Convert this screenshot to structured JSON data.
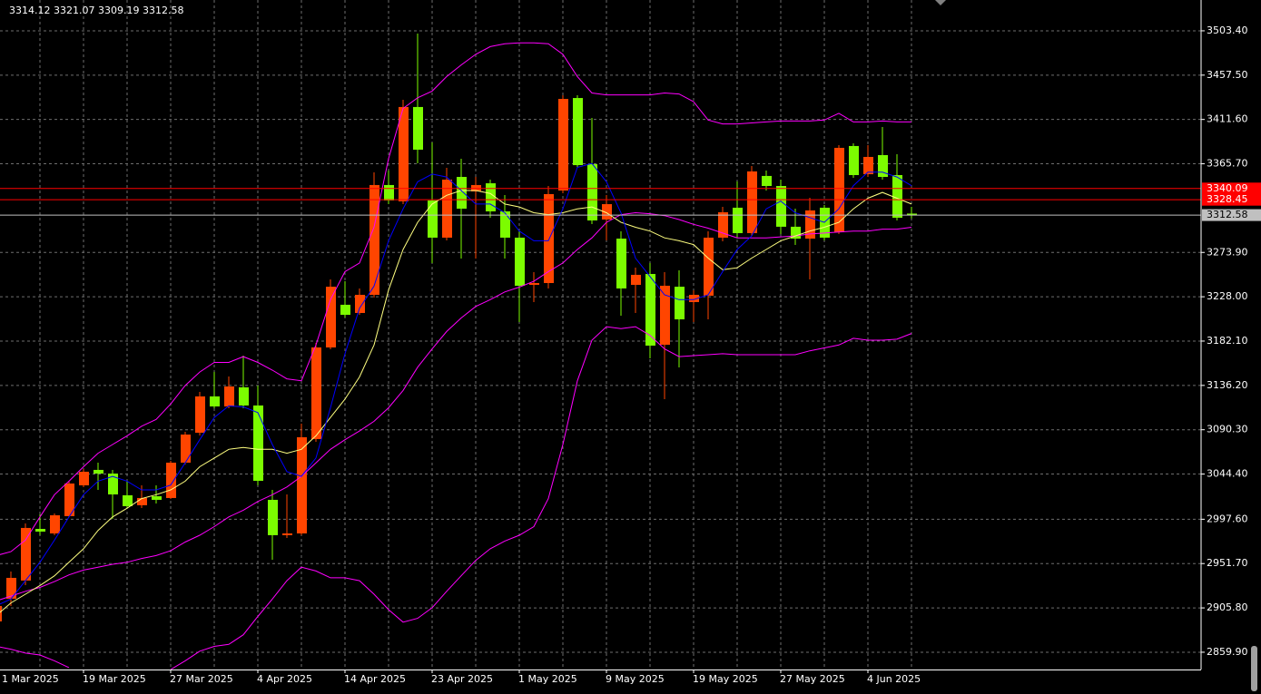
{
  "chart_data": {
    "type": "candlestick",
    "info": "3314.12 3321.07 3309.19 3312.58",
    "categories": [
      "1 Mar 2025",
      null,
      null,
      null,
      null,
      null,
      "19 Mar 2025",
      null,
      null,
      null,
      null,
      null,
      "27 Mar 2025",
      null,
      null,
      null,
      null,
      null,
      "4 Apr 2025",
      null,
      null,
      null,
      null,
      null,
      "14 Apr 2025",
      null,
      null,
      null,
      null,
      null,
      "23 Apr 2025",
      null,
      null,
      null,
      null,
      null,
      "1 May 2025",
      null,
      null,
      null,
      null,
      null,
      "9 May 2025",
      null,
      null,
      null,
      null,
      null,
      "19 May 2025",
      null,
      null,
      null,
      null,
      null,
      "27 May 2025",
      null,
      null,
      null,
      null,
      null,
      "4 Jun 2025",
      null,
      null,
      null
    ],
    "open": [
      2891.8,
      2915.3,
      2934.1,
      2987.6,
      2982.9,
      3000.8,
      3032.7,
      3048.7,
      3044.9,
      3022.4,
      3012.1,
      3021.4,
      3019.6,
      3056.2,
      3087.2,
      3124.8,
      3114.4,
      3134.2,
      3115.4,
      3017.7,
      2981.1,
      2982.9,
      3080.6,
      3175.5,
      3219.7,
      3211.2,
      3230.0,
      3343.7,
      3326.8,
      3424.5,
      3327.7,
      3289.2,
      3352.1,
      3337.1,
      3345.5,
      3316.4,
      3289.2,
      3240.3,
      3242.2,
      3338.0,
      3433.8,
      3365.3,
      3308.0,
      3288.2,
      3240.3,
      3251.6,
      3178.3,
      3238.4,
      3222.5,
      3229.1,
      3289.2,
      3320.2,
      3293.9,
      3353.1,
      3342.7,
      3300.5,
      3288.2,
      3320.2,
      3294.8,
      3384.1,
      3354.9,
      3374.7,
      3354.0,
      3314.12
    ],
    "high": [
      2920.0,
      2943.5,
      2993.3,
      3002.7,
      3003.6,
      3036.5,
      3049.6,
      3056.2,
      3048.7,
      3037.4,
      3032.7,
      3032.7,
      3058.1,
      3088.1,
      3129.5,
      3150.1,
      3145.4,
      3167.1,
      3136.1,
      3028.0,
      3023.3,
      3096.6,
      3180.2,
      3246.0,
      3244.1,
      3236.6,
      3356.8,
      3358.7,
      3432.0,
      3500.5,
      3387.8,
      3361.5,
      3370.9,
      3352.1,
      3349.3,
      3333.3,
      3295.8,
      3253.5,
      3342.7,
      3436.7,
      3436.7,
      3413.2,
      3333.3,
      3295.8,
      3258.2,
      3262.9,
      3253.5,
      3255.4,
      3234.7,
      3295.8,
      3321.1,
      3347.4,
      3363.4,
      3358.7,
      3349.3,
      3319.2,
      3330.5,
      3323.0,
      3385.0,
      3386.9,
      3385.0,
      3403.8,
      3375.6,
      3321.07
    ],
    "low": [
      2887.1,
      2907.8,
      2929.4,
      2981.1,
      2981.1,
      2999.8,
      3030.8,
      3028.0,
      2998.0,
      3009.2,
      3009.2,
      3013.9,
      3018.6,
      3054.3,
      3084.4,
      3112.6,
      3112.6,
      3112.6,
      3032.7,
      2955.7,
      2978.2,
      2981.1,
      3077.8,
      3173.6,
      3206.5,
      3209.3,
      3227.2,
      3323.9,
      3323.9,
      3366.2,
      3262.9,
      3286.4,
      3267.6,
      3267.6,
      3309.8,
      3267.6,
      3201.8,
      3222.5,
      3236.6,
      3335.2,
      3361.5,
      3303.3,
      3286.4,
      3208.4,
      3211.2,
      3164.2,
      3122.0,
      3154.8,
      3201.8,
      3204.6,
      3285.4,
      3289.2,
      3291.1,
      3338.0,
      3292.9,
      3281.7,
      3246.0,
      3286.4,
      3292.9,
      3351.2,
      3352.1,
      3349.3,
      3307.0,
      3309.19
    ],
    "close": [
      2907.8,
      2936.9,
      2988.6,
      2984.8,
      3001.7,
      3034.6,
      3046.8,
      3044.9,
      3023.3,
      3011.1,
      3019.6,
      3017.7,
      3056.2,
      3085.3,
      3124.8,
      3114.4,
      3135.1,
      3115.4,
      3037.4,
      2981.1,
      2982.9,
      3082.5,
      3175.5,
      3238.4,
      3209.3,
      3230.0,
      3343.7,
      3327.7,
      3424.5,
      3380.3,
      3289.2,
      3349.3,
      3319.2,
      3343.7,
      3316.4,
      3289.2,
      3239.4,
      3242.2,
      3334.3,
      3432.9,
      3364.3,
      3307.0,
      3323.9,
      3236.6,
      3250.7,
      3177.4,
      3239.4,
      3204.6,
      3230.0,
      3289.2,
      3315.5,
      3293.9,
      3357.8,
      3342.7,
      3300.5,
      3288.2,
      3317.4,
      3289.2,
      3382.2,
      3354.0,
      3372.8,
      3352.1,
      3309.8,
      3312.58
    ],
    "up_color": "#ff4500",
    "down_color": "#7cfc00",
    "overlays": [
      {
        "color": "#ff00ff",
        "values": [
          2960,
          2964,
          2976,
          3000,
          3023,
          3037,
          3052,
          3066,
          3075,
          3084,
          3094,
          3101,
          3117,
          3136,
          3150,
          3160,
          3160,
          3166,
          3160,
          3152,
          3143,
          3141,
          3178,
          3225,
          3254,
          3263,
          3300,
          3371,
          3423,
          3434,
          3441,
          3456,
          3468,
          3479,
          3487,
          3490,
          3491,
          3491,
          3490,
          3479,
          3456,
          3439,
          3437,
          3437,
          3437,
          3437,
          3439,
          3438,
          3430,
          3411,
          3407,
          3407,
          3408,
          3409,
          3410,
          3410,
          3410,
          3411,
          3418,
          3409,
          3409,
          3410,
          3409,
          3409
        ]
      },
      {
        "color": "#ff00ff",
        "values": [
          2913,
          2918,
          2923,
          2927,
          2933,
          2940,
          2945,
          2948,
          2951,
          2953,
          2957,
          2960,
          2965,
          2974,
          2981,
          2990,
          3000,
          3007,
          3016,
          3023,
          3031,
          3042,
          3056,
          3070,
          3080,
          3089,
          3099,
          3113,
          3131,
          3155,
          3174,
          3192,
          3206,
          3218,
          3225,
          3233,
          3238,
          3244,
          3254,
          3263,
          3277,
          3289,
          3305,
          3313,
          3315,
          3314,
          3312,
          3308,
          3303,
          3299,
          3294,
          3289,
          3289,
          3289,
          3290,
          3291,
          3293,
          3294,
          3295,
          3296,
          3296,
          3298,
          3298,
          3300
        ]
      },
      {
        "color": "#ff00ff",
        "values": [
          2866,
          2863,
          2859,
          2857,
          2851,
          2844,
          null,
          null,
          null,
          null,
          null,
          null,
          2842,
          2851,
          2861,
          2866,
          2868,
          2878,
          2897,
          2915,
          2934,
          2948,
          2944,
          2937,
          2937,
          2934,
          2920,
          2904,
          2891,
          2895,
          2906,
          2923,
          2939,
          2955,
          2967,
          2975,
          2981,
          2990,
          3019,
          3075,
          3141,
          3183,
          3197,
          3195,
          3197,
          3188,
          3174,
          3166,
          3167,
          3168,
          3169,
          3168,
          3168,
          3168,
          3168,
          3168,
          3172,
          3175,
          3178,
          3185,
          3183,
          3183,
          3184,
          3190
        ]
      },
      {
        "color": "#ffff80",
        "values": [
          2898,
          2911,
          2920,
          2929,
          2939,
          2953,
          2967,
          2986,
          3000,
          3009,
          3019,
          3023,
          3028,
          3037,
          3052,
          3061,
          3070,
          3072,
          3070,
          3070,
          3066,
          3070,
          3084,
          3103,
          3122,
          3145,
          3178,
          3235,
          3277,
          3305,
          3324,
          3333,
          3338,
          3338,
          3335,
          3324,
          3321,
          3315,
          3313,
          3315,
          3319,
          3321,
          3315,
          3305,
          3300,
          3296,
          3289,
          3286,
          3282,
          3268,
          3256,
          3258,
          3268,
          3277,
          3286,
          3291,
          3296,
          3300,
          3305,
          3319,
          3330,
          3336,
          3330,
          3324
        ]
      },
      {
        "color": "#0000ff",
        "values": [
          2908,
          2915,
          2934,
          2953,
          2976,
          3000,
          3023,
          3037,
          3042,
          3037,
          3028,
          3028,
          3033,
          3056,
          3080,
          3103,
          3115,
          3114,
          3108,
          3075,
          3047,
          3042,
          3061,
          3113,
          3169,
          3216,
          3239,
          3286,
          3319,
          3347,
          3355,
          3352,
          3338,
          3324,
          3324,
          3315,
          3296,
          3286,
          3286,
          3319,
          3362,
          3366,
          3347,
          3315,
          3268,
          3249,
          3230,
          3225,
          3225,
          3230,
          3254,
          3277,
          3291,
          3319,
          3327,
          3315,
          3310,
          3305,
          3319,
          3343,
          3357,
          3357,
          3352,
          3343
        ]
      }
    ],
    "levels": [
      {
        "value": 3340.09,
        "color": "#ff0000",
        "text_color": "#ffffff"
      },
      {
        "value": 3328.45,
        "color": "#ff0000",
        "text_color": "#ffffff"
      },
      {
        "value": 3312.58,
        "color": "#c0c0c0",
        "text_color": "#000000"
      }
    ],
    "ylim": [
      2842.0,
      3535.3
    ],
    "yticks": [
      {
        "value": 3503.4,
        "label": "3503.40"
      },
      {
        "value": 3457.5,
        "label": "3457.50"
      },
      {
        "value": 3411.6,
        "label": "3411.60"
      },
      {
        "value": 3365.7,
        "label": "3365.70"
      },
      {
        "value": 3273.9,
        "label": "3273.90"
      },
      {
        "value": 3228,
        "label": "3228.00"
      },
      {
        "value": 3182.1,
        "label": "3182.10"
      },
      {
        "value": 3136.2,
        "label": "3136.20"
      },
      {
        "value": 3090.3,
        "label": "3090.30"
      },
      {
        "value": 3044.4,
        "label": "3044.40"
      },
      {
        "value": 2997.6,
        "label": "2997.60"
      },
      {
        "value": 2951.7,
        "label": "2951.70"
      },
      {
        "value": 2905.8,
        "label": "2905.80"
      },
      {
        "value": 2859.9,
        "label": "2859.90"
      }
    ],
    "grid": true
  }
}
